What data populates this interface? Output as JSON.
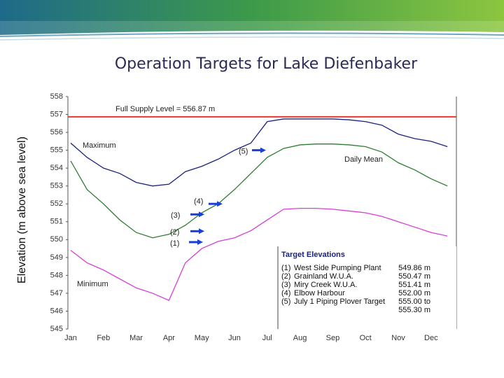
{
  "chart_data": {
    "type": "line",
    "title": "Operation Targets for Lake Diefenbaker",
    "y_label": "Elevation (m above sea level)",
    "categories": [
      "Jan",
      null,
      "Feb",
      null,
      "Mar",
      null,
      "Apr",
      null,
      "May",
      null,
      "Jun",
      null,
      "Jul",
      null,
      "Aug",
      null,
      "Sep",
      null,
      "Oct",
      null,
      "Nov",
      null,
      "Dec",
      null
    ],
    "series": [
      {
        "name": "Maximum",
        "color": "#1a237e",
        "values": [
          555.4,
          554.6,
          554.0,
          553.7,
          553.2,
          553.0,
          553.1,
          553.8,
          554.1,
          554.5,
          555.0,
          555.4,
          556.6,
          556.75,
          556.75,
          556.75,
          556.75,
          556.7,
          556.6,
          556.4,
          555.9,
          555.65,
          555.5,
          555.2
        ]
      },
      {
        "name": "Daily Mean",
        "color": "#2e7d32",
        "values": [
          554.4,
          552.8,
          552.0,
          551.1,
          550.4,
          550.1,
          550.3,
          550.8,
          551.5,
          552.0,
          552.8,
          553.7,
          554.6,
          555.1,
          555.3,
          555.35,
          555.35,
          555.3,
          555.2,
          554.9,
          554.3,
          553.9,
          553.4,
          553.0
        ]
      },
      {
        "name": "Minimum",
        "color": "#d63fd6",
        "values": [
          549.4,
          548.7,
          548.3,
          547.8,
          547.3,
          547.0,
          546.6,
          548.7,
          549.5,
          549.9,
          550.1,
          550.5,
          551.1,
          551.7,
          551.75,
          551.75,
          551.7,
          551.6,
          551.5,
          551.3,
          551.0,
          550.7,
          550.4,
          550.2
        ]
      }
    ],
    "ylim": [
      545,
      558
    ],
    "yticks": [
      545,
      546,
      547,
      548,
      549,
      550,
      551,
      552,
      553,
      554,
      555,
      556,
      557,
      558
    ],
    "grid": false,
    "reference_line": {
      "value": 556.87,
      "label": "Full Supply Level = 556.87 m",
      "color": "#e53935"
    },
    "targets": {
      "title": "Target Elevations",
      "items": [
        {
          "marker": "(1)",
          "name": "West Side Pumping Plant",
          "value": 549.86,
          "value_label": "549.86 m"
        },
        {
          "marker": "(2)",
          "name": "Grainland W.U.A.",
          "value": 550.47,
          "value_label": "550.47 m"
        },
        {
          "marker": "(3)",
          "name": "Miry Creek W.U.A.",
          "value": 551.41,
          "value_label": "551.41 m"
        },
        {
          "marker": "(4)",
          "name": "Elbow Harbour",
          "value": 552.0,
          "value_label": "552.00 m"
        },
        {
          "marker": "(5)",
          "name": "July 1 Piping Plover Target",
          "value": 555.0,
          "value_label": "555.00 to 555.30 m"
        }
      ]
    }
  }
}
